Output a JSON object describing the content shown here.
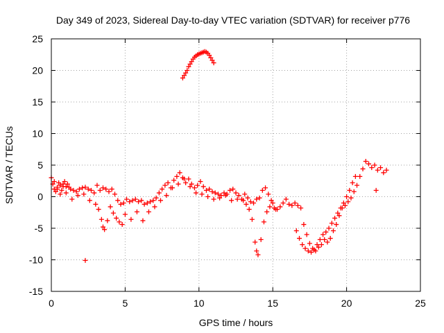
{
  "chart_data": {
    "type": "scatter",
    "title": "Day 349 of 2023, Sidereal Day-to-day VTEC variation (SDTVAR) for receiver p776",
    "xlabel": "GPS time / hours",
    "ylabel": "SDTVAR / TECUs",
    "xlim": [
      0,
      25
    ],
    "ylim": [
      -15,
      25
    ],
    "xticks": [
      "0",
      "5",
      "10",
      "15",
      "20",
      "25"
    ],
    "yticks": [
      "-15",
      "-10",
      "-5",
      "0",
      "5",
      "10",
      "15",
      "20",
      "25"
    ],
    "grid": true,
    "marker": "plus",
    "color": "#ff0000",
    "series": [
      {
        "name": "SDTVAR",
        "x": [
          0.0,
          0.1,
          0.2,
          0.3,
          0.4,
          0.5,
          0.6,
          0.7,
          0.8,
          0.9,
          1.0,
          1.1,
          1.2,
          1.3,
          1.5,
          1.7,
          1.9,
          2.1,
          2.3,
          2.5,
          2.7,
          2.9,
          3.1,
          3.3,
          3.5,
          3.7,
          3.9,
          4.1,
          4.3,
          4.5,
          4.7,
          4.9,
          5.1,
          5.3,
          5.5,
          5.7,
          5.9,
          6.1,
          6.3,
          6.5,
          6.7,
          6.9,
          7.1,
          7.3,
          7.5,
          7.7,
          7.9,
          8.1,
          8.3,
          8.5,
          8.7,
          8.9,
          9.1,
          9.3,
          9.5,
          9.7,
          9.9,
          10.1,
          10.3,
          10.5,
          10.7,
          10.9,
          11.1,
          11.3,
          11.5,
          11.7,
          11.9,
          12.1,
          12.3,
          12.5,
          12.7,
          12.9,
          13.1,
          13.3,
          13.5,
          13.7,
          13.9,
          14.1,
          14.3,
          14.5,
          14.7,
          14.9,
          15.1,
          15.3,
          15.5,
          15.7,
          15.9,
          16.1,
          16.3,
          16.5,
          16.7,
          16.9,
          17.1,
          17.3,
          17.5,
          17.7,
          17.9,
          18.1,
          18.3,
          18.5,
          18.7,
          18.9,
          19.1,
          19.3,
          19.5,
          19.7,
          19.9,
          20.1,
          20.3,
          20.5,
          20.7,
          20.9,
          21.1,
          21.3,
          21.5,
          21.7,
          21.9,
          22.1,
          22.3,
          22.5,
          22.7,
          0.2,
          0.4,
          0.6,
          0.8,
          1.0,
          1.4,
          1.8,
          2.2,
          2.6,
          3.0,
          3.2,
          3.4,
          3.5,
          3.6,
          3.8,
          4.0,
          4.2,
          4.4,
          4.6,
          4.8,
          5.0,
          5.4,
          5.8,
          6.2,
          6.6,
          7.0,
          7.4,
          7.8,
          8.2,
          8.6,
          9.0,
          9.4,
          9.8,
          10.2,
          10.6,
          11.0,
          11.4,
          11.8,
          12.2,
          12.6,
          13.0,
          13.2,
          13.4,
          13.6,
          13.8,
          13.9,
          14.0,
          14.2,
          14.4,
          14.6,
          14.8,
          15.0,
          15.2,
          16.6,
          16.8,
          17.0,
          17.2,
          17.4,
          17.6,
          17.8,
          18.0,
          18.2,
          18.4,
          18.6,
          18.8,
          19.0,
          19.2,
          19.4,
          19.6,
          19.8,
          20.0,
          20.2,
          20.4,
          20.6,
          2.3,
          8.9,
          9.0,
          9.1,
          9.2,
          9.3,
          9.4,
          9.5,
          9.6,
          9.7,
          9.8,
          9.9,
          10.0,
          10.1,
          10.2,
          10.3,
          10.4,
          10.5,
          10.6,
          10.7,
          10.8,
          10.9,
          11.0,
          22.0
        ],
        "y": [
          3.0,
          2.0,
          1.2,
          0.8,
          1.5,
          2.2,
          1.8,
          1.0,
          2.0,
          2.4,
          1.6,
          2.0,
          1.5,
          1.2,
          1.0,
          0.8,
          1.2,
          1.4,
          1.5,
          1.2,
          1.0,
          0.6,
          1.8,
          1.0,
          1.4,
          1.2,
          0.8,
          1.2,
          0.4,
          -0.6,
          -1.2,
          -1.0,
          -0.4,
          -0.8,
          -0.6,
          -0.4,
          -0.8,
          -0.6,
          -1.2,
          -1.0,
          -0.8,
          -0.6,
          -0.2,
          0.6,
          1.2,
          1.8,
          2.2,
          1.4,
          2.6,
          3.2,
          3.8,
          3.0,
          2.2,
          2.8,
          2.0,
          1.4,
          1.8,
          2.4,
          1.6,
          1.0,
          1.2,
          0.8,
          0.6,
          0.4,
          0.2,
          0.6,
          0.4,
          1.0,
          1.2,
          0.6,
          0.2,
          -0.4,
          0.4,
          -0.2,
          -0.8,
          -1.0,
          -0.4,
          -0.2,
          1.0,
          1.4,
          0.4,
          -0.6,
          -1.8,
          -2.0,
          -1.6,
          -1.0,
          -0.4,
          -1.2,
          -1.4,
          -1.0,
          -1.4,
          -1.8,
          -4.4,
          -6.0,
          -7.4,
          -8.2,
          -8.6,
          -8.0,
          -7.6,
          -6.8,
          -7.2,
          -6.6,
          -5.4,
          -4.4,
          -3.0,
          -1.8,
          -1.4,
          -0.8,
          -0.2,
          0.8,
          1.8,
          3.2,
          4.4,
          5.6,
          5.2,
          4.6,
          5.0,
          4.2,
          4.6,
          3.8,
          4.2,
          2.4,
          1.2,
          0.4,
          1.6,
          0.6,
          -0.4,
          0.2,
          0.4,
          -0.6,
          -1.2,
          -2.0,
          -3.6,
          -4.8,
          -5.2,
          -3.8,
          -1.6,
          -2.6,
          -3.4,
          -4.0,
          -4.4,
          -2.8,
          -3.6,
          -2.4,
          -3.8,
          -2.4,
          -1.6,
          -0.6,
          0.2,
          1.4,
          2.0,
          2.8,
          1.6,
          0.6,
          0.4,
          0.0,
          -0.4,
          -0.2,
          0.2,
          -0.6,
          -0.4,
          -0.6,
          -1.2,
          -2.0,
          -3.6,
          -7.2,
          -8.6,
          -9.2,
          -6.8,
          -4.0,
          -2.4,
          -1.6,
          -1.0,
          -2.0,
          -5.4,
          -6.6,
          -7.6,
          -8.2,
          -8.6,
          -8.8,
          -8.4,
          -7.6,
          -6.8,
          -6.0,
          -5.6,
          -5.0,
          -4.2,
          -3.4,
          -2.6,
          -1.8,
          -1.0,
          0.0,
          1.0,
          2.2,
          3.2,
          -10.1,
          18.8,
          19.2,
          19.6,
          20.0,
          20.6,
          21.0,
          21.4,
          21.8,
          22.1,
          22.3,
          22.5,
          22.6,
          22.7,
          22.8,
          22.9,
          23.0,
          22.9,
          22.7,
          22.4,
          22.0,
          21.6,
          21.2,
          1.0
        ]
      }
    ]
  }
}
